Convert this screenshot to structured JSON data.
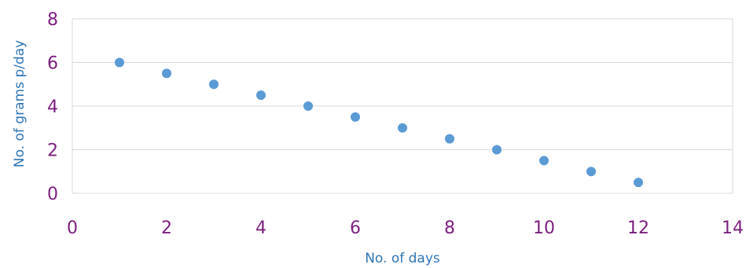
{
  "colors": {
    "tick_labels": "#7b1f7e",
    "axis_titles": "#2e75b6",
    "points": "#5b9bd5",
    "gridlines": "#d9d9d9",
    "background": "#ffffff"
  },
  "chart_data": {
    "type": "scatter",
    "title": "",
    "xlabel": "No. of days",
    "ylabel": "No. of grams p/day",
    "xlim": [
      0,
      14
    ],
    "ylim": [
      0,
      8
    ],
    "x_ticks": [
      "0",
      "2",
      "4",
      "6",
      "8",
      "10",
      "12",
      "14"
    ],
    "y_ticks": [
      "0",
      "2",
      "4",
      "6",
      "8"
    ],
    "grid": "horizontal",
    "legend": "none",
    "series": [
      {
        "x": [
          1,
          2,
          3,
          4,
          5,
          6,
          7,
          8,
          9,
          10,
          11,
          12
        ],
        "y": [
          6,
          5.5,
          5,
          4.5,
          4,
          3.5,
          3,
          2.5,
          2,
          1.5,
          1,
          0.5
        ]
      }
    ]
  }
}
